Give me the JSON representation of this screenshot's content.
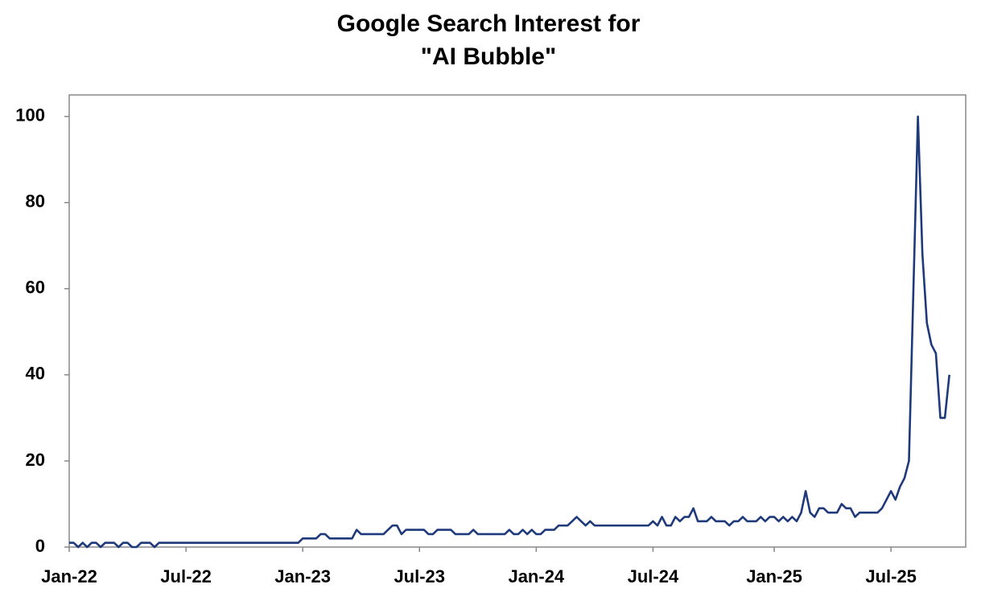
{
  "chart_data": {
    "type": "line",
    "title": [
      "Google Search Interest for",
      "\"AI Bubble\""
    ],
    "categories": [
      "Jan-22",
      null,
      null,
      null,
      null,
      null,
      null,
      null,
      null,
      null,
      null,
      null,
      null,
      null,
      null,
      null,
      null,
      null,
      null,
      null,
      null,
      null,
      null,
      null,
      null,
      null,
      "Jul-22",
      null,
      null,
      null,
      null,
      null,
      null,
      null,
      null,
      null,
      null,
      null,
      null,
      null,
      null,
      null,
      null,
      null,
      null,
      null,
      null,
      null,
      null,
      null,
      null,
      null,
      "Jan-23",
      null,
      null,
      null,
      null,
      null,
      null,
      null,
      null,
      null,
      null,
      null,
      null,
      null,
      null,
      null,
      null,
      null,
      null,
      null,
      null,
      null,
      null,
      null,
      null,
      null,
      "Jul-23",
      null,
      null,
      null,
      null,
      null,
      null,
      null,
      null,
      null,
      null,
      null,
      null,
      null,
      null,
      null,
      null,
      null,
      null,
      null,
      null,
      null,
      null,
      null,
      null,
      null,
      "Jan-24",
      null,
      null,
      null,
      null,
      null,
      null,
      null,
      null,
      null,
      null,
      null,
      null,
      null,
      null,
      null,
      null,
      null,
      null,
      null,
      null,
      null,
      null,
      null,
      null,
      null,
      "Jul-24",
      null,
      null,
      null,
      null,
      null,
      null,
      null,
      null,
      null,
      null,
      null,
      null,
      null,
      null,
      null,
      null,
      null,
      null,
      null,
      null,
      null,
      null,
      null,
      null,
      null,
      null,
      "Jan-25",
      null,
      null,
      null,
      null,
      null,
      null,
      null,
      null,
      null,
      null,
      null,
      null,
      null,
      null,
      null,
      null,
      null,
      null,
      null,
      null,
      null,
      null,
      null,
      null,
      null,
      "Jul-25",
      null,
      null,
      null,
      null,
      null,
      null,
      null,
      null,
      null,
      null,
      null,
      null,
      null
    ],
    "series": [
      {
        "name": "AI Bubble",
        "color": "#1f3a7a",
        "values": [
          1,
          1,
          0,
          1,
          0,
          1,
          1,
          0,
          1,
          1,
          1,
          0,
          1,
          1,
          0,
          0,
          1,
          1,
          1,
          0,
          1,
          1,
          1,
          1,
          1,
          1,
          1,
          1,
          1,
          1,
          1,
          1,
          1,
          1,
          1,
          1,
          1,
          1,
          1,
          1,
          1,
          1,
          1,
          1,
          1,
          1,
          1,
          1,
          1,
          1,
          1,
          1,
          2,
          2,
          2,
          2,
          3,
          3,
          2,
          2,
          2,
          2,
          2,
          2,
          4,
          3,
          3,
          3,
          3,
          3,
          3,
          4,
          5,
          5,
          3,
          4,
          4,
          4,
          4,
          4,
          3,
          3,
          4,
          4,
          4,
          4,
          3,
          3,
          3,
          3,
          4,
          3,
          3,
          3,
          3,
          3,
          3,
          3,
          4,
          3,
          3,
          4,
          3,
          4,
          3,
          3,
          4,
          4,
          4,
          5,
          5,
          5,
          6,
          7,
          6,
          5,
          6,
          5,
          5,
          5,
          5,
          5,
          5,
          5,
          5,
          5,
          5,
          5,
          5,
          5,
          6,
          5,
          7,
          5,
          5,
          7,
          6,
          7,
          7,
          9,
          6,
          6,
          6,
          7,
          6,
          6,
          6,
          5,
          6,
          6,
          7,
          6,
          6,
          6,
          7,
          6,
          7,
          7,
          6,
          7,
          6,
          7,
          6,
          8,
          13,
          8,
          7,
          9,
          9,
          8,
          8,
          8,
          10,
          9,
          9,
          7,
          8,
          8,
          8,
          8,
          8,
          9,
          11,
          13,
          11,
          14,
          16,
          20,
          60,
          100,
          68,
          52,
          47,
          45,
          30,
          30,
          40
        ]
      }
    ],
    "ylim": [
      0,
      105
    ],
    "yticks": [
      0,
      20,
      40,
      60,
      80,
      100
    ],
    "grid": false
  }
}
